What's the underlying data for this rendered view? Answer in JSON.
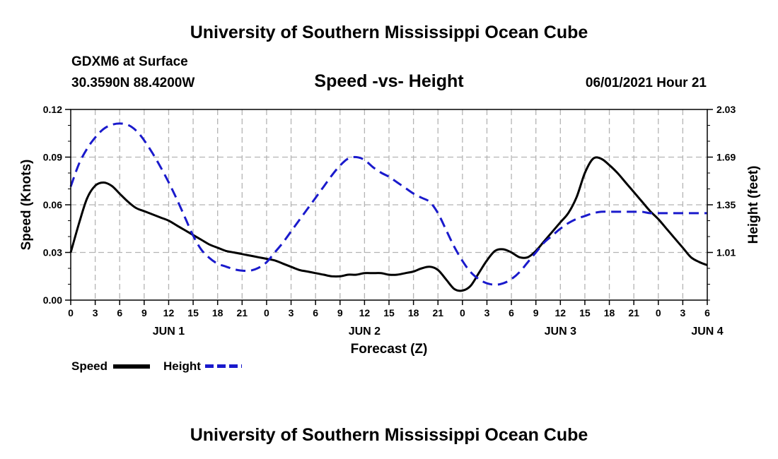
{
  "header": {
    "title_top": "University of Southern Mississippi Ocean Cube",
    "station": "GDXM6 at Surface",
    "coords": "30.3590N  88.4200W",
    "chart_title": "Speed -vs- Height",
    "datetime": "06/01/2021 Hour 21"
  },
  "footer": {
    "title_bottom": "University of Southern Mississippi Ocean Cube"
  },
  "colors": {
    "speed": "#000000",
    "height": "#1a1acc",
    "grid": "#b4b4b4"
  },
  "chart_data": {
    "type": "line",
    "xlabel": "Forecast (Z)",
    "ylabel": "Speed (Knots)",
    "y2label": "Height (feet)",
    "x_hours_range": [
      0,
      78
    ],
    "ylim": [
      0,
      0.12
    ],
    "y2lim": [
      0.67,
      2.03
    ],
    "yticks": [
      "0.00",
      "0.03",
      "0.06",
      "0.09",
      "0.12"
    ],
    "y2ticks": [
      "1.01",
      "1.35",
      "1.69",
      "2.03"
    ],
    "xtick_labels": [
      "0",
      "3",
      "6",
      "9",
      "12",
      "15",
      "18",
      "21",
      "0",
      "3",
      "6",
      "9",
      "12",
      "15",
      "18",
      "21",
      "0",
      "3",
      "6",
      "9",
      "12",
      "15",
      "18",
      "21",
      "0",
      "3",
      "6"
    ],
    "day_labels": [
      {
        "label": "JUN 1",
        "hour": 12
      },
      {
        "label": "JUN 2",
        "hour": 36
      },
      {
        "label": "JUN 3",
        "hour": 60
      },
      {
        "label": "JUN 4",
        "hour": 78
      }
    ],
    "grid": true,
    "series": [
      {
        "name": "Speed",
        "axis": "left",
        "style": "solid",
        "hours": [
          0,
          1,
          2,
          3,
          4,
          5,
          6,
          7,
          8,
          9,
          10,
          11,
          12,
          13,
          14,
          15,
          16,
          17,
          18,
          19,
          20,
          21,
          22,
          23,
          24,
          25,
          26,
          27,
          28,
          29,
          30,
          31,
          32,
          33,
          34,
          35,
          36,
          37,
          38,
          39,
          40,
          41,
          42,
          43,
          44,
          45,
          46,
          47,
          48,
          49,
          50,
          51,
          52,
          53,
          54,
          55,
          56,
          57,
          58,
          59,
          60,
          61,
          62,
          63,
          64,
          65,
          66,
          67,
          68,
          69,
          70,
          71,
          72,
          73,
          74,
          75,
          76,
          77,
          78
        ],
        "values": [
          0.03,
          0.048,
          0.064,
          0.072,
          0.074,
          0.072,
          0.067,
          0.062,
          0.058,
          0.056,
          0.054,
          0.052,
          0.05,
          0.047,
          0.044,
          0.041,
          0.038,
          0.035,
          0.033,
          0.031,
          0.03,
          0.029,
          0.028,
          0.027,
          0.026,
          0.025,
          0.023,
          0.021,
          0.019,
          0.018,
          0.017,
          0.016,
          0.015,
          0.015,
          0.016,
          0.016,
          0.017,
          0.017,
          0.017,
          0.016,
          0.016,
          0.017,
          0.018,
          0.02,
          0.021,
          0.019,
          0.013,
          0.007,
          0.006,
          0.009,
          0.017,
          0.025,
          0.031,
          0.032,
          0.03,
          0.027,
          0.027,
          0.031,
          0.037,
          0.043,
          0.049,
          0.055,
          0.065,
          0.08,
          0.089,
          0.089,
          0.085,
          0.08,
          0.074,
          0.068,
          0.062,
          0.056,
          0.051,
          0.045,
          0.039,
          0.033,
          0.027,
          0.024,
          0.022
        ]
      },
      {
        "name": "Height",
        "axis": "right",
        "style": "dashed",
        "hours": [
          0,
          1,
          2,
          3,
          4,
          5,
          6,
          7,
          8,
          9,
          10,
          11,
          12,
          13,
          14,
          15,
          16,
          17,
          18,
          19,
          20,
          21,
          22,
          23,
          24,
          25,
          26,
          27,
          28,
          29,
          30,
          31,
          32,
          33,
          34,
          35,
          36,
          37,
          38,
          39,
          40,
          41,
          42,
          43,
          44,
          45,
          46,
          47,
          48,
          49,
          50,
          51,
          52,
          53,
          54,
          55,
          56,
          57,
          58,
          59,
          60,
          61,
          62,
          63,
          64,
          65,
          66,
          67,
          68,
          69,
          70,
          71,
          72,
          73,
          74,
          75,
          76,
          77,
          78
        ],
        "values": [
          1.48,
          1.64,
          1.75,
          1.83,
          1.89,
          1.92,
          1.93,
          1.92,
          1.88,
          1.81,
          1.72,
          1.62,
          1.51,
          1.39,
          1.26,
          1.13,
          1.03,
          0.97,
          0.93,
          0.91,
          0.89,
          0.88,
          0.88,
          0.9,
          0.94,
          1.01,
          1.08,
          1.16,
          1.24,
          1.32,
          1.4,
          1.48,
          1.56,
          1.63,
          1.68,
          1.69,
          1.67,
          1.62,
          1.58,
          1.55,
          1.51,
          1.47,
          1.43,
          1.4,
          1.37,
          1.29,
          1.17,
          1.05,
          0.95,
          0.87,
          0.82,
          0.79,
          0.78,
          0.79,
          0.82,
          0.87,
          0.94,
          1.01,
          1.08,
          1.13,
          1.18,
          1.22,
          1.25,
          1.27,
          1.29,
          1.3,
          1.3,
          1.3,
          1.3,
          1.3,
          1.3,
          1.29,
          1.29,
          1.29,
          1.29,
          1.29,
          1.29,
          1.29,
          1.29
        ]
      }
    ]
  }
}
